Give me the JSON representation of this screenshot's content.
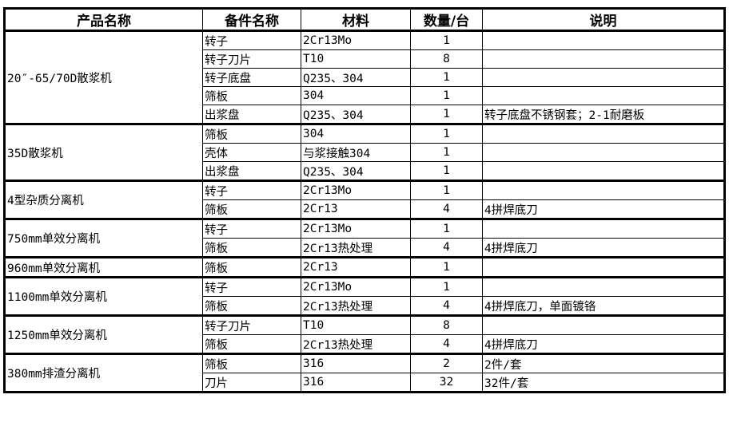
{
  "headers": [
    "产品名称",
    "备件名称",
    "材料",
    "数量/台",
    "说明"
  ],
  "groups": [
    {
      "product": "20″-65/70D散浆机",
      "parts": [
        {
          "name": "转子",
          "material": "2Cr13Mo",
          "qty": "1",
          "note": ""
        },
        {
          "name": "转子刀片",
          "material": "T10",
          "qty": "8",
          "note": ""
        },
        {
          "name": "转子底盘",
          "material": "Q235、304",
          "qty": "1",
          "note": ""
        },
        {
          "name": "筛板",
          "material": "304",
          "qty": "1",
          "note": ""
        },
        {
          "name": "出浆盘",
          "material": "Q235、304",
          "qty": "1",
          "note": "转子底盘不锈钢套；2-1耐磨板"
        }
      ]
    },
    {
      "product": "35D散浆机",
      "parts": [
        {
          "name": "筛板",
          "material": "304",
          "qty": "1",
          "note": ""
        },
        {
          "name": "壳体",
          "material": "与浆接触304",
          "qty": "1",
          "note": ""
        },
        {
          "name": "出浆盘",
          "material": "Q235、304",
          "qty": "1",
          "note": ""
        }
      ]
    },
    {
      "product": "4型杂质分离机",
      "parts": [
        {
          "name": "转子",
          "material": "2Cr13Mo",
          "qty": "1",
          "note": ""
        },
        {
          "name": "筛板",
          "material": "2Cr13",
          "qty": "4",
          "note": "4拼焊底刀"
        }
      ]
    },
    {
      "product": "750mm单效分离机",
      "parts": [
        {
          "name": "转子",
          "material": "2Cr13Mo",
          "qty": "1",
          "note": ""
        },
        {
          "name": "筛板",
          "material": "2Cr13热处理",
          "qty": "4",
          "note": "4拼焊底刀"
        }
      ]
    },
    {
      "product": "960mm单效分离机",
      "parts": [
        {
          "name": "筛板",
          "material": "2Cr13",
          "qty": "1",
          "note": ""
        }
      ]
    },
    {
      "product": "1100mm单效分离机",
      "parts": [
        {
          "name": "转子",
          "material": "2Cr13Mo",
          "qty": "1",
          "note": ""
        },
        {
          "name": "筛板",
          "material": "2Cr13热处理",
          "qty": "4",
          "note": "4拼焊底刀，单面镀铬"
        }
      ]
    },
    {
      "product": "1250mm单效分离机",
      "parts": [
        {
          "name": "转子刀片",
          "material": "T10",
          "qty": "8",
          "note": ""
        },
        {
          "name": "筛板",
          "material": "2Cr13热处理",
          "qty": "4",
          "note": "4拼焊底刀"
        }
      ]
    },
    {
      "product": "380mm排渣分离机",
      "parts": [
        {
          "name": "筛板",
          "material": "316",
          "qty": "2",
          "note": "2件/套"
        },
        {
          "name": "刀片",
          "material": "316",
          "qty": "32",
          "note": "32件/套"
        }
      ]
    }
  ]
}
